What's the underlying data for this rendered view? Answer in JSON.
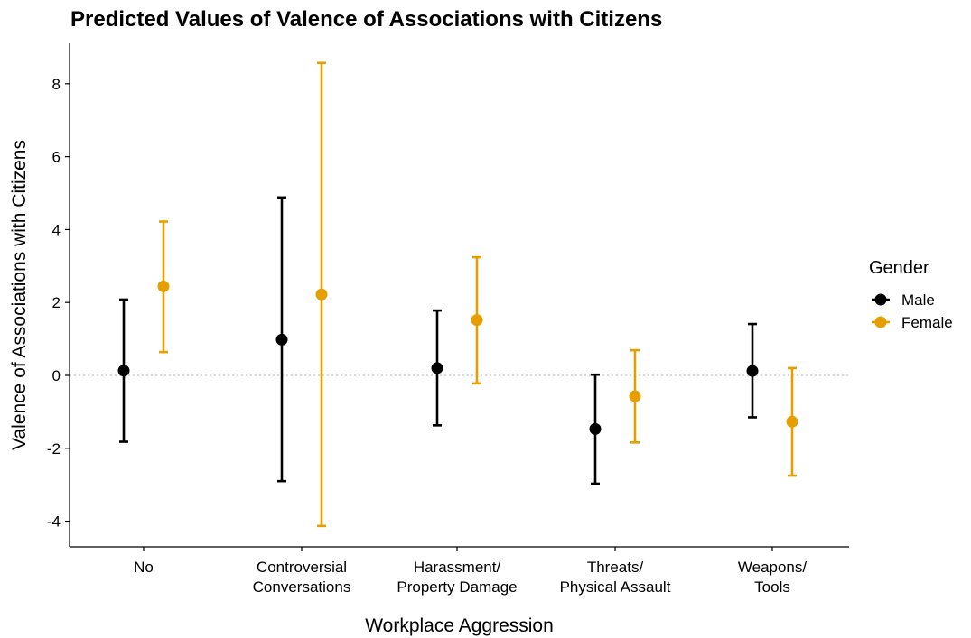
{
  "chart_data": {
    "type": "scatter",
    "title": "Predicted Values of Valence of Associations with Citizens",
    "xlabel": "Workplace Aggression",
    "ylabel": "Valence of Associations with Citizens",
    "categories": [
      [
        "No"
      ],
      [
        "Controversial",
        "Conversations"
      ],
      [
        "Harassment/",
        "Property Damage"
      ],
      [
        "Threats/",
        "Physical Assault"
      ],
      [
        "Weapons/",
        "Tools"
      ]
    ],
    "y_ticks": [
      -4,
      -2,
      0,
      2,
      4,
      6,
      8
    ],
    "ylim": [
      -4.75,
      9.2
    ],
    "reference_line": 0,
    "legend": {
      "title": "Gender",
      "position": "right"
    },
    "series": [
      {
        "name": "Male",
        "color": "#000000",
        "values": [
          0.13,
          0.98,
          0.2,
          -1.47,
          0.12
        ],
        "lower": [
          -1.82,
          -2.9,
          -1.37,
          -2.97,
          -1.15
        ],
        "upper": [
          2.08,
          4.88,
          1.78,
          0.02,
          1.41
        ]
      },
      {
        "name": "Female",
        "color": "#E69F00",
        "values": [
          2.44,
          2.22,
          1.52,
          -0.57,
          -1.27
        ],
        "lower": [
          0.64,
          -4.13,
          -0.22,
          -1.84,
          -2.75
        ],
        "upper": [
          4.22,
          8.57,
          3.24,
          0.69,
          0.2
        ]
      }
    ],
    "grid": false
  }
}
